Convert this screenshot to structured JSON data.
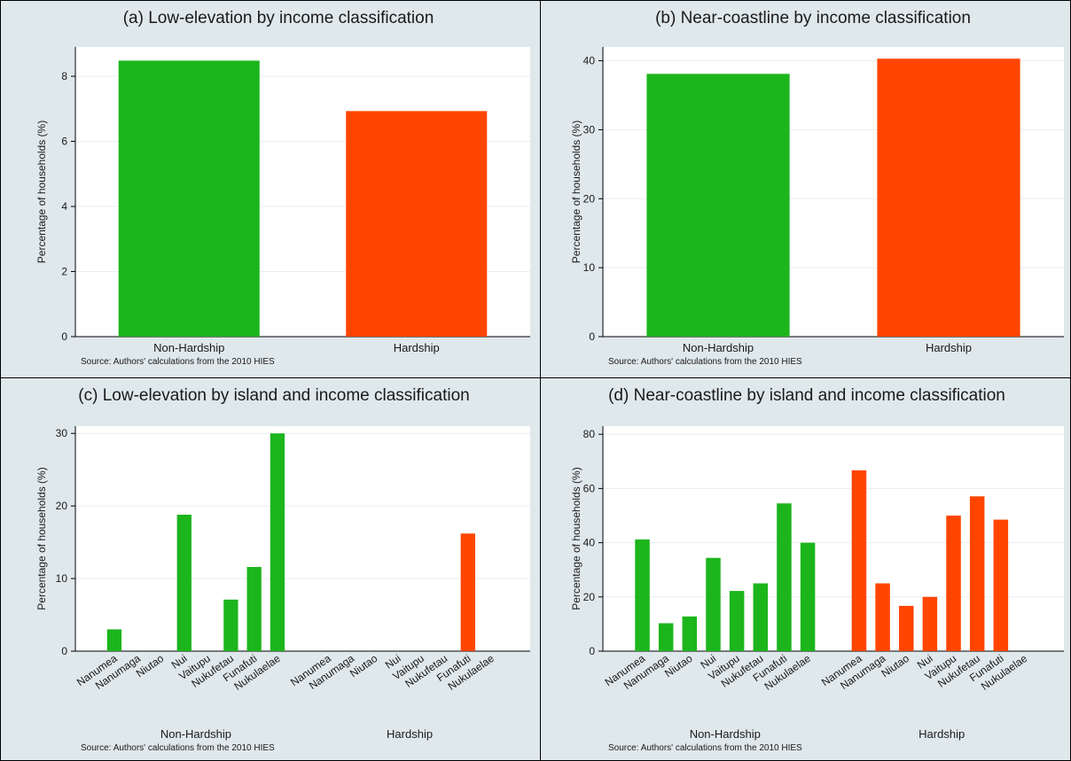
{
  "colors": {
    "non_hardship": "#1cb51c",
    "hardship": "#ff4500",
    "panel_bg": "#dfe8eb",
    "plot_bg": "#ffffff",
    "grid": "#e8eef0"
  },
  "chart_data": [
    {
      "id": "a",
      "type": "bar",
      "title": "(a) Low-elevation by income classification",
      "ylabel": "Percentage of households (%)",
      "ylim": [
        0,
        8.9
      ],
      "yticks": [
        0,
        2,
        4,
        6,
        8
      ],
      "grid": true,
      "categories": [
        "Non-Hardship",
        "Hardship"
      ],
      "values": [
        8.48,
        6.93
      ],
      "note": "Source: Authors' calculations from the 2010 HIES"
    },
    {
      "id": "b",
      "type": "bar",
      "title": "(b) Near-coastline by income classification",
      "ylabel": "Percentage of households (%)",
      "ylim": [
        0,
        42
      ],
      "yticks": [
        0,
        10,
        20,
        30,
        40
      ],
      "grid": true,
      "categories": [
        "Non-Hardship",
        "Hardship"
      ],
      "values": [
        38.1,
        40.3
      ],
      "note": "Source: Authors' calculations from the 2010 HIES"
    },
    {
      "id": "c",
      "type": "bar",
      "title": "(c) Low-elevation by island and income classification",
      "ylabel": "Percentage of households (%)",
      "ylim": [
        0,
        31
      ],
      "yticks": [
        0,
        10,
        20,
        30
      ],
      "grid": true,
      "categories": [
        "Nanumea",
        "Nanumaga",
        "Niutao",
        "Nui",
        "Vaitupu",
        "Nukufetau",
        "Funafuti",
        "Nukulaelae"
      ],
      "series": [
        {
          "name": "Non-Hardship",
          "values": [
            3.0,
            0,
            0,
            18.8,
            0,
            7.1,
            11.6,
            30.0
          ]
        },
        {
          "name": "Hardship",
          "values": [
            0,
            0,
            0,
            0,
            0,
            0,
            16.2,
            0
          ]
        }
      ],
      "note": "Source: Authors' calculations from the 2010 HIES"
    },
    {
      "id": "d",
      "type": "bar",
      "title": "(d) Near-coastline by island and income classification",
      "ylabel": "Percentage of households (%)",
      "ylim": [
        0,
        83
      ],
      "yticks": [
        0,
        20,
        40,
        60,
        80
      ],
      "grid": true,
      "categories": [
        "Nanumea",
        "Nanumaga",
        "Niutao",
        "Nui",
        "Vaitupu",
        "Nukufetau",
        "Funafuti",
        "Nukulaelae"
      ],
      "series": [
        {
          "name": "Non-Hardship",
          "values": [
            41.2,
            10.3,
            12.8,
            34.4,
            22.2,
            25.0,
            54.5,
            40.0
          ]
        },
        {
          "name": "Hardship",
          "values": [
            66.7,
            25.0,
            16.7,
            20.0,
            50.0,
            57.1,
            48.5,
            0
          ]
        }
      ],
      "note": "Source: Authors' calculations from the 2010 HIES"
    }
  ]
}
